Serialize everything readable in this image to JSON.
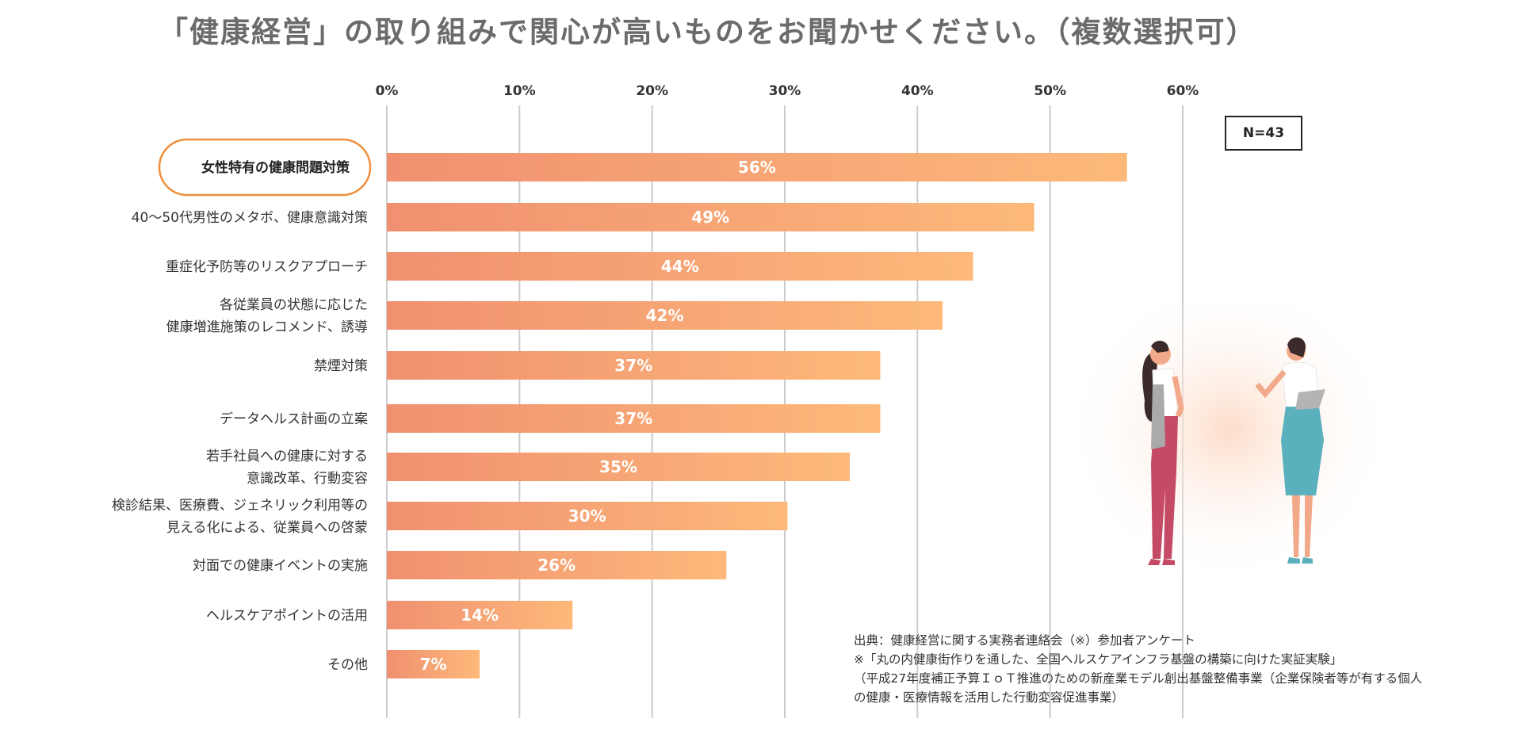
{
  "title": "「健康経営」の取り組みで関心が高いものをお聞かせください。（複数選択可）",
  "sample_size": "N=43",
  "source_lines": [
    "出典：健康経営に関する実務者連絡会（※）参加者アンケート",
    "※「丸の内健康街作りを通した、全国ヘルスケアインフラ基盤の構築に向けた実証実験」",
    "（平成27年度補正予算ＩｏＴ推進のための新産業モデル創出基盤整備事業（企業保険者等が有する個人",
    "の健康・医療情報を活用した行動変容促進事業）"
  ],
  "colors": {
    "bar_start": "#f09070",
    "bar_end": "#fdb97a",
    "highlight_border": "#ef8f3d",
    "grid": "#cccccc"
  },
  "chart_data": {
    "type": "bar",
    "orientation": "horizontal",
    "title": "「健康経営」の取り組みで関心が高いものをお聞かせください。（複数選択可）",
    "xlim": [
      0,
      60
    ],
    "ticks": [
      0,
      10,
      20,
      30,
      40,
      50,
      60
    ],
    "tick_labels": [
      "0%",
      "10%",
      "20%",
      "30%",
      "40%",
      "50%",
      "60%"
    ],
    "grid": true,
    "categories": [
      [
        "女性特有の健康問題対策"
      ],
      [
        "40～50代男性のメタボ、健康意識対策"
      ],
      [
        "重症化予防等のリスクアプローチ"
      ],
      [
        "各従業員の状態に応じた",
        "健康増進施策のレコメンド、誘導"
      ],
      [
        "禁煙対策"
      ],
      [
        "データヘルス計画の立案"
      ],
      [
        "若手社員への健康に対する",
        "意識改革、行動変容"
      ],
      [
        "検診結果、医療費、ジェネリック利用等の",
        "見える化による、従業員への啓蒙"
      ],
      [
        "対面での健康イベントの実施"
      ],
      [
        "ヘルスケアポイントの活用"
      ],
      [
        "その他"
      ]
    ],
    "values": [
      55.8,
      48.8,
      44.2,
      41.9,
      37.2,
      37.2,
      34.9,
      30.2,
      25.6,
      14.0,
      7.0
    ],
    "value_labels": [
      "56%",
      "49%",
      "44%",
      "42%",
      "37%",
      "37%",
      "35%",
      "30%",
      "26%",
      "14%",
      "7%"
    ],
    "highlight_index": 0
  }
}
